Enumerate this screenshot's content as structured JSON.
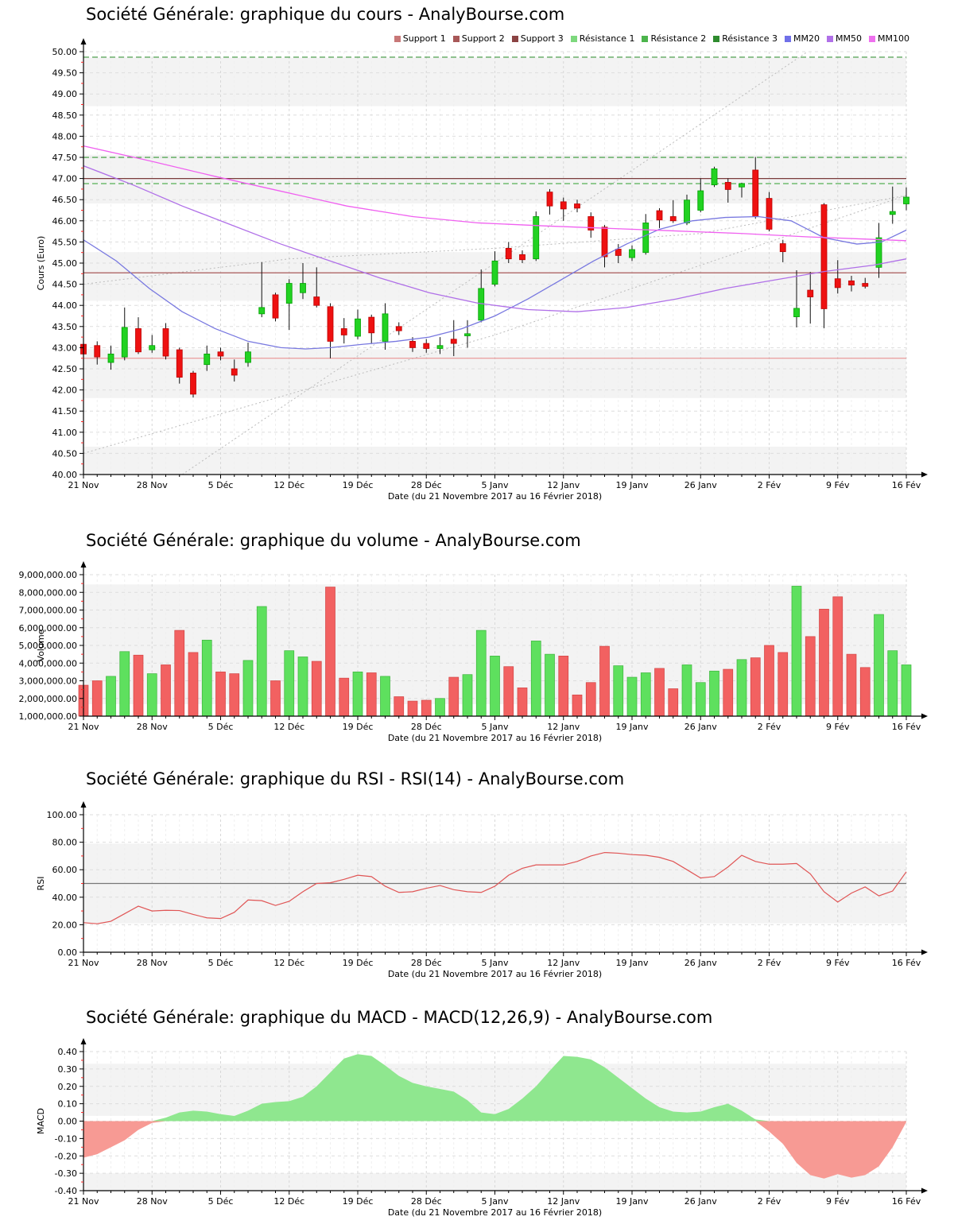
{
  "xlabel": "Date (du 21 Novembre 2017 au 16 Février 2018)",
  "date_labels": {
    "labels": [
      "21 Nov",
      "28 Nov",
      "5 Déc",
      "12 Déc",
      "19 Déc",
      "28 Déc",
      "5 Janv",
      "12 Janv",
      "19 Janv",
      "26 Janv",
      "2 Fév",
      "9 Fév",
      "16 Fév"
    ],
    "indices": [
      0,
      5,
      10,
      15,
      20,
      25,
      30,
      35,
      40,
      45,
      50,
      55,
      60
    ]
  },
  "legend": [
    {
      "label": "Support 1",
      "color": "#c87878"
    },
    {
      "label": "Support 2",
      "color": "#a85858"
    },
    {
      "label": "Support 3",
      "color": "#8b4343"
    },
    {
      "label": "Résistance 1",
      "color": "#7dd87d"
    },
    {
      "label": "Résistance 2",
      "color": "#4cb44c"
    },
    {
      "label": "Résistance 3",
      "color": "#2e8b2e"
    },
    {
      "label": "MM20",
      "color": "#7070e8"
    },
    {
      "label": "MM50",
      "color": "#b070e8"
    },
    {
      "label": "MM100",
      "color": "#ee70ee"
    }
  ],
  "palette": {
    "candle_up": "#22d222",
    "candle_up_stroke": "#00a000",
    "candle_down": "#ee1111",
    "candle_down_stroke": "#bb0000",
    "wick": "#111111",
    "vol_up": "#5ee05e",
    "vol_up_stroke": "#3cb43c",
    "vol_down": "#f26161",
    "vol_down_stroke": "#d24444",
    "rsi_line": "#e05555",
    "center_line": "#777777",
    "macd_pos": "#8fe78f",
    "macd_neg": "#f79a94",
    "grid_week": "#d8d8d8",
    "grid_day": "#efefef",
    "grid_h": "#dddddd",
    "stripe": "#f3f3f3",
    "trend": "#bbbbbb",
    "minor_tick": "#ff2222",
    "mm20": "#7878e0",
    "mm50": "#b070e8",
    "mm100": "#f060f0"
  },
  "chart_data": [
    {
      "id": "price",
      "type": "candlestick",
      "title": "Société Générale: graphique du cours - AnalyBourse.com",
      "ylabel": "Cours (Euro)",
      "ymin": 40,
      "ymax": 50,
      "ystep": 0.5,
      "yfmt": "fixed2",
      "stripes": [
        [
          49.86,
          48.71
        ],
        [
          47.56,
          46.41
        ],
        [
          45.26,
          44.11
        ],
        [
          42.96,
          41.81
        ],
        [
          40.66,
          40.0
        ]
      ],
      "hlines": [
        {
          "name": "support-1",
          "value": 42.75,
          "color": "#e88888",
          "width": 1,
          "dash": ""
        },
        {
          "name": "support-2",
          "value": 44.77,
          "color": "#a85858",
          "width": 1.3,
          "dash": ""
        },
        {
          "name": "support-3",
          "value": 47.0,
          "color": "#7a3b3b",
          "width": 1.3,
          "dash": ""
        },
        {
          "name": "resistance-1",
          "value": 46.88,
          "color": "#55b055",
          "width": 1.2,
          "dash": "7,4"
        },
        {
          "name": "resistance-2",
          "value": 47.5,
          "color": "#46a046",
          "width": 1.2,
          "dash": "7,4"
        },
        {
          "name": "resistance-3",
          "value": 49.87,
          "color": "#3c963c",
          "width": 1.2,
          "dash": "7,4"
        }
      ],
      "trendlines": [
        {
          "name": "channel-steep",
          "points": [
            [
              12,
              40
            ],
            [
              88,
              50
            ]
          ]
        },
        {
          "name": "channel-lower",
          "points": [
            [
              0,
              40.5
            ],
            [
              50,
              43.3
            ],
            [
              100,
              46.6
            ]
          ]
        },
        {
          "name": "channel-upper",
          "points": [
            [
              0,
              44.5
            ],
            [
              25,
              45.1
            ],
            [
              50,
              45.35
            ],
            [
              75,
              45.7
            ],
            [
              100,
              46.6
            ]
          ]
        }
      ],
      "ma": [
        {
          "name": "MM20",
          "color": "#7878e0",
          "points": [
            [
              0,
              45.55
            ],
            [
              4,
              45.05
            ],
            [
              8,
              44.4
            ],
            [
              12,
              43.85
            ],
            [
              16,
              43.45
            ],
            [
              20,
              43.15
            ],
            [
              24,
              43.0
            ],
            [
              27,
              42.97
            ],
            [
              30,
              43.0
            ],
            [
              34,
              43.08
            ],
            [
              38,
              43.15
            ],
            [
              42,
              43.25
            ],
            [
              46,
              43.45
            ],
            [
              50,
              43.75
            ],
            [
              54,
              44.15
            ],
            [
              58,
              44.6
            ],
            [
              62,
              45.05
            ],
            [
              66,
              45.45
            ],
            [
              70,
              45.8
            ],
            [
              74,
              46.0
            ],
            [
              78,
              46.08
            ],
            [
              82,
              46.1
            ],
            [
              86,
              46.0
            ],
            [
              90,
              45.6
            ],
            [
              94,
              45.45
            ],
            [
              97,
              45.5
            ],
            [
              100,
              45.78
            ]
          ]
        },
        {
          "name": "MM50",
          "color": "#b070e8",
          "points": [
            [
              0,
              47.3
            ],
            [
              6,
              46.85
            ],
            [
              12,
              46.35
            ],
            [
              18,
              45.9
            ],
            [
              24,
              45.45
            ],
            [
              30,
              45.05
            ],
            [
              36,
              44.65
            ],
            [
              42,
              44.3
            ],
            [
              48,
              44.05
            ],
            [
              54,
              43.9
            ],
            [
              60,
              43.85
            ],
            [
              66,
              43.95
            ],
            [
              72,
              44.15
            ],
            [
              78,
              44.4
            ],
            [
              84,
              44.6
            ],
            [
              90,
              44.8
            ],
            [
              96,
              44.95
            ],
            [
              100,
              45.1
            ]
          ]
        },
        {
          "name": "MM100",
          "color": "#f060f0",
          "points": [
            [
              0,
              47.77
            ],
            [
              8,
              47.42
            ],
            [
              16,
              47.05
            ],
            [
              24,
              46.7
            ],
            [
              32,
              46.35
            ],
            [
              40,
              46.1
            ],
            [
              48,
              45.95
            ],
            [
              56,
              45.88
            ],
            [
              64,
              45.82
            ],
            [
              72,
              45.76
            ],
            [
              80,
              45.7
            ],
            [
              88,
              45.62
            ],
            [
              96,
              45.56
            ],
            [
              100,
              45.53
            ]
          ]
        }
      ],
      "candles": [
        [
          43.08,
          43.35,
          42.8,
          42.85
        ],
        [
          43.05,
          43.15,
          42.6,
          42.78
        ],
        [
          42.65,
          43.05,
          42.48,
          42.85
        ],
        [
          42.78,
          43.95,
          42.7,
          43.48
        ],
        [
          43.45,
          43.72,
          42.85,
          42.9
        ],
        [
          42.95,
          43.3,
          42.88,
          43.05
        ],
        [
          43.45,
          43.58,
          42.72,
          42.8
        ],
        [
          42.95,
          43.0,
          42.15,
          42.3
        ],
        [
          42.4,
          42.45,
          41.82,
          41.9
        ],
        [
          42.6,
          43.05,
          42.45,
          42.85
        ],
        [
          42.9,
          43.0,
          42.7,
          42.8
        ],
        [
          42.5,
          42.72,
          42.2,
          42.35
        ],
        [
          42.65,
          43.12,
          42.55,
          42.9
        ],
        [
          43.8,
          45.02,
          43.72,
          43.95
        ],
        [
          44.25,
          44.3,
          43.62,
          43.7
        ],
        [
          44.05,
          44.62,
          43.42,
          44.52
        ],
        [
          44.3,
          45.0,
          44.15,
          44.52
        ],
        [
          44.2,
          44.9,
          43.95,
          44.0
        ],
        [
          43.97,
          44.05,
          42.75,
          43.15
        ],
        [
          43.45,
          43.7,
          43.1,
          43.3
        ],
        [
          43.27,
          43.9,
          43.2,
          43.68
        ],
        [
          43.72,
          43.78,
          43.1,
          43.35
        ],
        [
          43.15,
          44.05,
          42.95,
          43.8
        ],
        [
          43.5,
          43.6,
          43.3,
          43.4
        ],
        [
          43.15,
          43.25,
          42.9,
          43.0
        ],
        [
          43.1,
          43.2,
          42.88,
          42.98
        ],
        [
          42.98,
          43.25,
          42.85,
          43.05
        ],
        [
          43.2,
          43.65,
          42.8,
          43.1
        ],
        [
          43.28,
          43.65,
          43.0,
          43.33
        ],
        [
          43.65,
          44.85,
          43.6,
          44.4
        ],
        [
          44.5,
          45.28,
          44.45,
          45.05
        ],
        [
          45.35,
          45.5,
          45.0,
          45.1
        ],
        [
          45.2,
          45.3,
          45.0,
          45.08
        ],
        [
          45.1,
          46.22,
          45.05,
          46.1
        ],
        [
          46.68,
          46.75,
          46.15,
          46.35
        ],
        [
          46.45,
          46.55,
          46.0,
          46.28
        ],
        [
          46.4,
          46.5,
          46.2,
          46.3
        ],
        [
          46.1,
          46.2,
          45.6,
          45.78
        ],
        [
          45.85,
          45.9,
          44.9,
          45.15
        ],
        [
          45.33,
          45.45,
          45.0,
          45.18
        ],
        [
          45.13,
          45.42,
          45.05,
          45.32
        ],
        [
          45.25,
          46.16,
          45.2,
          45.95
        ],
        [
          46.24,
          46.3,
          45.83,
          46.02
        ],
        [
          46.1,
          46.49,
          45.95,
          46.0
        ],
        [
          45.95,
          46.62,
          45.9,
          46.49
        ],
        [
          46.25,
          47.0,
          46.2,
          46.71
        ],
        [
          46.85,
          47.28,
          46.8,
          47.23
        ],
        [
          46.91,
          47.0,
          46.43,
          46.74
        ],
        [
          46.8,
          46.9,
          46.55,
          46.88
        ],
        [
          47.2,
          47.51,
          46.05,
          46.1
        ],
        [
          46.53,
          46.68,
          45.75,
          45.8
        ],
        [
          45.46,
          45.55,
          45.02,
          45.27
        ],
        [
          43.73,
          44.83,
          43.48,
          43.93
        ],
        [
          44.36,
          44.79,
          43.57,
          44.2
        ],
        [
          46.38,
          46.42,
          43.46,
          43.92
        ],
        [
          44.63,
          45.07,
          44.28,
          44.42
        ],
        [
          44.58,
          44.7,
          44.33,
          44.48
        ],
        [
          44.52,
          44.65,
          44.4,
          44.45
        ],
        [
          44.9,
          45.95,
          44.65,
          45.6
        ],
        [
          46.15,
          46.81,
          45.93,
          46.22
        ],
        [
          46.4,
          46.79,
          46.25,
          46.56
        ]
      ]
    },
    {
      "id": "volume",
      "type": "bar",
      "title": "Société Générale: graphique du volume - AnalyBourse.com",
      "ylabel": "Volume",
      "ymin": 1000000,
      "ymax": 9000000,
      "ystep": 1000000,
      "yfmt": "thousands",
      "stripes": [
        [
          8450000,
          1680000
        ]
      ],
      "values": [
        2750000,
        3000000,
        3250000,
        4650000,
        4450000,
        3400000,
        3900000,
        5850000,
        4600000,
        5300000,
        3500000,
        3400000,
        4150000,
        7200000,
        3000000,
        4700000,
        4350000,
        4100000,
        8300000,
        3150000,
        3500000,
        3450000,
        3250000,
        2100000,
        1850000,
        1900000,
        2000000,
        3200000,
        3350000,
        5850000,
        4400000,
        3800000,
        2600000,
        5250000,
        4500000,
        4400000,
        2200000,
        2900000,
        4950000,
        3850000,
        3200000,
        3450000,
        3700000,
        2550000,
        3900000,
        2900000,
        3550000,
        3650000,
        4200000,
        4300000,
        5000000,
        4600000,
        8350000,
        5500000,
        7050000,
        7750000,
        4500000,
        3750000,
        6750000,
        4700000,
        3900000
      ],
      "dirs": [
        "d",
        "d",
        "u",
        "u",
        "d",
        "u",
        "d",
        "d",
        "d",
        "u",
        "d",
        "d",
        "u",
        "u",
        "d",
        "u",
        "u",
        "d",
        "d",
        "d",
        "u",
        "d",
        "u",
        "d",
        "d",
        "d",
        "u",
        "d",
        "u",
        "u",
        "u",
        "d",
        "d",
        "u",
        "u",
        "d",
        "d",
        "d",
        "d",
        "u",
        "u",
        "u",
        "d",
        "d",
        "u",
        "u",
        "u",
        "d",
        "u",
        "d",
        "d",
        "d",
        "u",
        "d",
        "d",
        "d",
        "d",
        "d",
        "u",
        "u",
        "u"
      ]
    },
    {
      "id": "rsi",
      "type": "line",
      "title": "Société Générale: graphique du RSI - RSI(14) - AnalyBourse.com",
      "ylabel": "RSI",
      "ymin": 0,
      "ymax": 100,
      "ystep": 20,
      "yfmt": "fixed2",
      "centerline": 50,
      "stripes": [
        [
          79,
          21
        ]
      ],
      "values": [
        21.5,
        20.7,
        22.5,
        28,
        33.5,
        30,
        30.5,
        30.3,
        27.5,
        25,
        24.5,
        29,
        38,
        37.5,
        34,
        37,
        44,
        50,
        50.5,
        53,
        56,
        55,
        48,
        43.5,
        44,
        46.5,
        48.5,
        45.5,
        44,
        43.5,
        48,
        56,
        61,
        63.5,
        63.5,
        63.5,
        66,
        70,
        72.5,
        72,
        71,
        70.5,
        69,
        66,
        60,
        54,
        55,
        62,
        70.5,
        66,
        64,
        64,
        64.5,
        57,
        44,
        36.5,
        43,
        47.5,
        41,
        44.5,
        58.5
      ]
    },
    {
      "id": "macd",
      "type": "area",
      "title": "Société Générale: graphique du MACD - MACD(12,26,9) - AnalyBourse.com",
      "ylabel": "MACD",
      "ymin": -0.4,
      "ymax": 0.4,
      "ystep": 0.1,
      "yfmt": "fixed2",
      "stripes": [
        [
          0.33,
          0.03
        ],
        [
          -0.3,
          -0.4
        ]
      ],
      "values": [
        -0.21,
        -0.19,
        -0.15,
        -0.11,
        -0.05,
        -0.01,
        0.02,
        0.05,
        0.06,
        0.055,
        0.04,
        0.03,
        0.06,
        0.1,
        0.11,
        0.115,
        0.14,
        0.2,
        0.28,
        0.36,
        0.385,
        0.375,
        0.32,
        0.26,
        0.22,
        0.2,
        0.185,
        0.17,
        0.12,
        0.05,
        0.04,
        0.07,
        0.13,
        0.2,
        0.29,
        0.375,
        0.37,
        0.355,
        0.31,
        0.25,
        0.19,
        0.13,
        0.08,
        0.055,
        0.05,
        0.055,
        0.08,
        0.1,
        0.06,
        0.01,
        -0.06,
        -0.13,
        -0.24,
        -0.31,
        -0.33,
        -0.305,
        -0.325,
        -0.31,
        -0.26,
        -0.15,
        -0.005
      ]
    }
  ]
}
